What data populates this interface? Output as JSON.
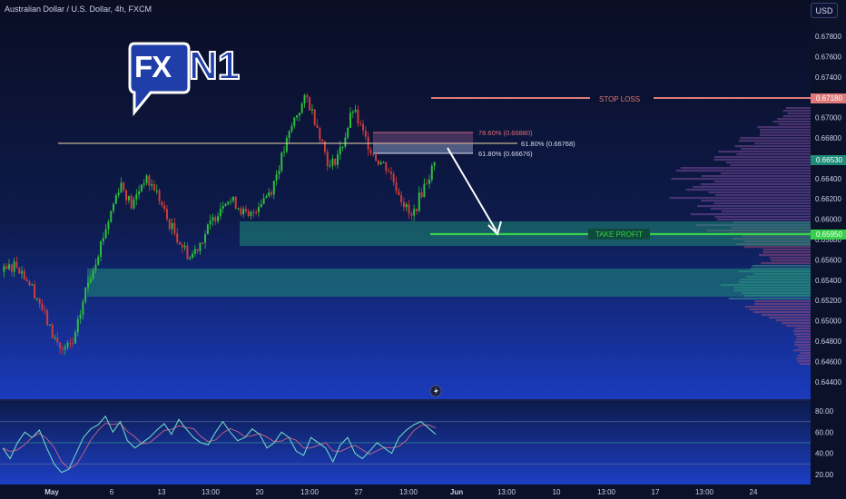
{
  "header": {
    "symbol_title": "Australian Dollar / U.S. Dollar, 4h, FXCM",
    "currency_button": "USD"
  },
  "logo": {
    "part1": "FX",
    "part2": "N1"
  },
  "annotations": {
    "stop_loss": "STOP LOSS",
    "take_profit": "TAKE PROFIT",
    "fib_786": "78.60% (0.66880)",
    "fib_618_line": "61.80% (0.66768)",
    "fib_618_box": "61.80% (0.66676)"
  },
  "price_tags": {
    "stop_loss": "0.67180",
    "current": "0.66530",
    "take_profit": "0.65950"
  },
  "colors": {
    "up": "#2fbf3f",
    "down": "#d23b3b",
    "zone": "#1f8c78",
    "stop_loss": "#e07a7a",
    "take_profit": "#36d04a",
    "rsi_line": "#6fd3c2",
    "rsi_signal": "#e06b8a"
  },
  "chart_data": [
    {
      "type": "candlestick",
      "title": "",
      "y_ticks": [
        "0.67800",
        "0.67600",
        "0.67400",
        "0.67200",
        "0.67000",
        "0.66800",
        "0.66600",
        "0.66400",
        "0.66200",
        "0.66000",
        "0.65800",
        "0.65600",
        "0.65400",
        "0.65200",
        "0.65000",
        "0.64800",
        "0.64600",
        "0.64400"
      ],
      "ylim": [
        0.6438,
        0.6795
      ],
      "x_ticks": [
        "May",
        "6",
        "13",
        "13:00",
        "20",
        "13:00",
        "27",
        "13:00",
        "Jun",
        "13:00",
        "10",
        "13:00",
        "17",
        "13:00",
        "24"
      ],
      "close_path": [
        0.6548,
        0.6557,
        0.6541,
        0.652,
        0.649,
        0.647,
        0.6478,
        0.653,
        0.6565,
        0.66,
        0.6637,
        0.6612,
        0.664,
        0.663,
        0.66,
        0.658,
        0.6562,
        0.658,
        0.66,
        0.6621,
        0.6615,
        0.66,
        0.6617,
        0.663,
        0.6665,
        0.67,
        0.672,
        0.669,
        0.665,
        0.667,
        0.6708,
        0.668,
        0.666,
        0.665,
        0.6625,
        0.66,
        0.663,
        0.6654
      ],
      "levels": [
        {
          "name": "STOP LOSS",
          "value": 0.6718
        },
        {
          "name": "Take profit",
          "value": 0.6595
        },
        {
          "name": "78.60%",
          "value": 0.6688
        },
        {
          "name": "61.80%",
          "value": 0.66768
        },
        {
          "name": "61.80%",
          "value": 0.66676
        }
      ],
      "zones": [
        {
          "from": 0.658,
          "to": 0.6602
        },
        {
          "from": 0.653,
          "to": 0.6557
        }
      ]
    },
    {
      "type": "line",
      "title": "",
      "y_ticks": [
        "80.00",
        "60.00",
        "40.00",
        "20.00"
      ],
      "ylim": [
        15,
        88
      ],
      "levels": [
        70,
        50,
        30
      ],
      "rsi": [
        45,
        35,
        50,
        60,
        55,
        62,
        45,
        30,
        22,
        25,
        40,
        55,
        63,
        67,
        75,
        60,
        70,
        52,
        45,
        50,
        55,
        62,
        68,
        58,
        72,
        63,
        55,
        50,
        48,
        60,
        70,
        60,
        52,
        55,
        63,
        58,
        45,
        50,
        60,
        55,
        42,
        38,
        55,
        50,
        45,
        32,
        48,
        55,
        40,
        35,
        42,
        50,
        45,
        40,
        55,
        62,
        67,
        70,
        64,
        58
      ]
    }
  ]
}
